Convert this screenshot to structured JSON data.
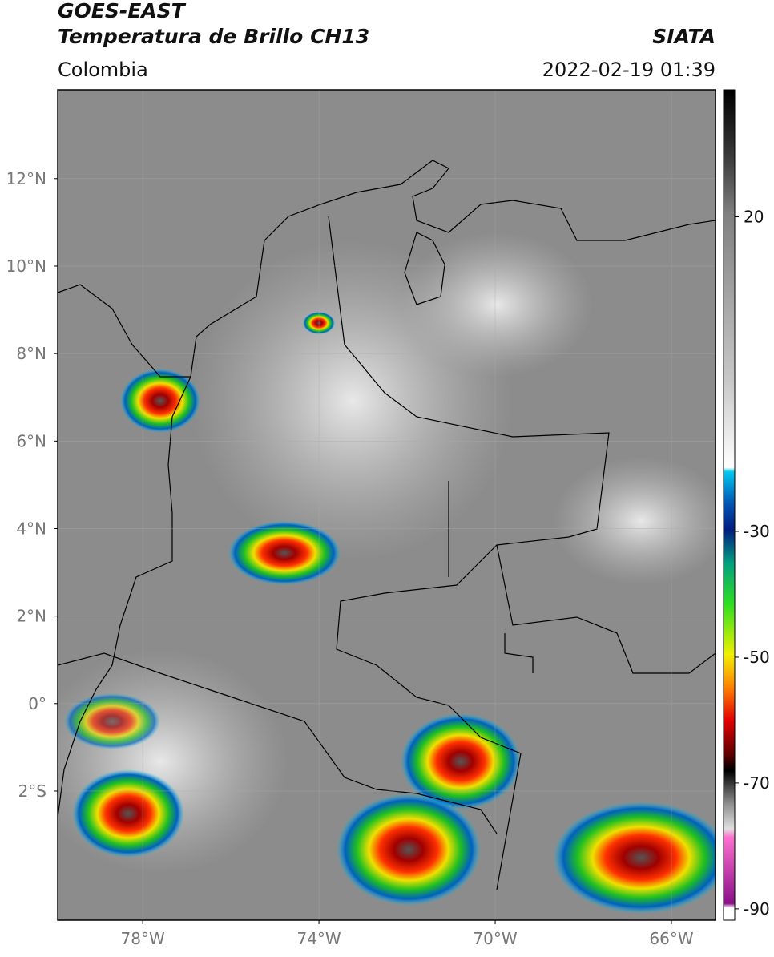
{
  "header": {
    "satellite": "GOES-EAST",
    "product": "Temperatura de Brillo CH13",
    "agency": "SIATA",
    "region": "Colombia",
    "datetime": "2022-02-19 01:39"
  },
  "map": {
    "xlim": [
      -79.93,
      -65.0
    ],
    "ylim": [
      -4.95,
      14.03
    ],
    "xticks": [
      {
        "value": -78,
        "label": "78°W"
      },
      {
        "value": -74,
        "label": "74°W"
      },
      {
        "value": -70,
        "label": "70°W"
      },
      {
        "value": -66,
        "label": "66°W"
      }
    ],
    "yticks": [
      {
        "value": 12,
        "label": "12°N"
      },
      {
        "value": 10,
        "label": "10°N"
      },
      {
        "value": 8,
        "label": "8°N"
      },
      {
        "value": 6,
        "label": "6°N"
      },
      {
        "value": 4,
        "label": "4°N"
      },
      {
        "value": 2,
        "label": "2°N"
      },
      {
        "value": 0,
        "label": "0°"
      },
      {
        "value": -2,
        "label": "2°S"
      }
    ],
    "grid": true
  },
  "colorbar": {
    "clim": [
      -91.8,
      40.2
    ],
    "ticks": [
      20,
      -30,
      -50,
      -70,
      -90
    ]
  }
}
